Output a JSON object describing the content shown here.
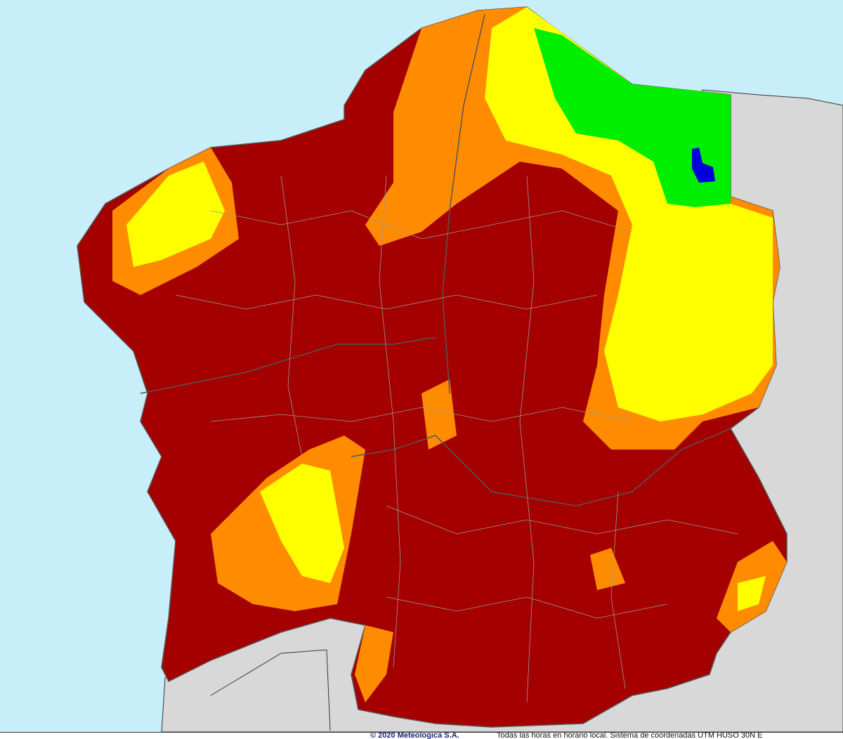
{
  "map": {
    "colors": {
      "sea": "#c8eefa",
      "neighbor_land": "#d8d8d8",
      "extreme": "#a50000",
      "high": "#ff8c00",
      "moderate": "#ffff00",
      "low": "#00ee00",
      "very_low": "#0000dd",
      "borders": "#8c8c8c"
    }
  },
  "footer": {
    "copyright": "© 2020 Meteologica S.A.",
    "note": "Todas las horas en horario local. Sistema de coordenadas UTM HUSO 30N E"
  }
}
